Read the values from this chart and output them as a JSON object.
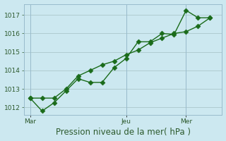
{
  "xlabel": "Pression niveau de la mer( hPa )",
  "bg_color": "#cce8f0",
  "grid_color": "#b0ccd0",
  "line_color": "#1a6b1a",
  "yticks": [
    1012,
    1013,
    1014,
    1015,
    1016,
    1017
  ],
  "ylim": [
    1011.6,
    1017.6
  ],
  "xtick_labels": [
    "Mar",
    "Jeu",
    "Mer"
  ],
  "xtick_positions": [
    0,
    8,
    13
  ],
  "xlim": [
    -0.5,
    16.0
  ],
  "series1_x": [
    0,
    1,
    2,
    3,
    4,
    5,
    6,
    7,
    8,
    9,
    10,
    11,
    12,
    13,
    14,
    15
  ],
  "series1_y": [
    1012.5,
    1011.8,
    1012.25,
    1012.9,
    1013.55,
    1013.35,
    1013.35,
    1014.15,
    1014.65,
    1015.55,
    1015.55,
    1016.0,
    1015.95,
    1017.25,
    1016.85,
    1016.85
  ],
  "series2_x": [
    0,
    1,
    2,
    3,
    4,
    5,
    6,
    7,
    8,
    9,
    10,
    11,
    12,
    13,
    14,
    15
  ],
  "series2_y": [
    1012.5,
    1012.5,
    1012.5,
    1013.0,
    1013.7,
    1014.0,
    1014.3,
    1014.5,
    1014.85,
    1015.1,
    1015.5,
    1015.75,
    1016.0,
    1016.1,
    1016.4,
    1016.85
  ],
  "vline_positions": [
    0,
    8,
    13
  ],
  "markersize": 3.5,
  "tick_fontsize": 6.5,
  "xlabel_fontsize": 8.5
}
